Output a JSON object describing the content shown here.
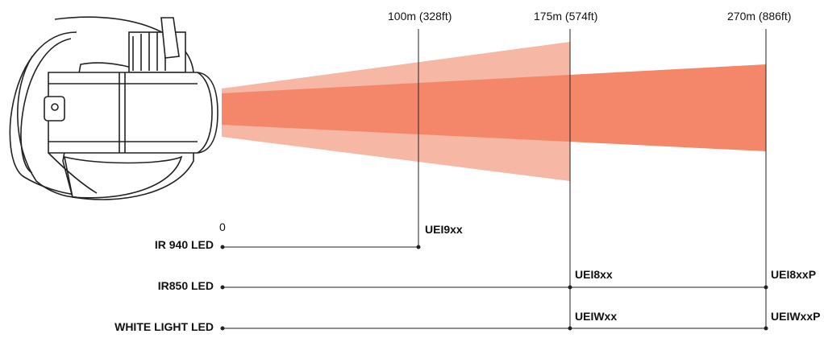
{
  "distances": {
    "d1": "100m (328ft)",
    "d2": "175m (574ft)",
    "d3": "270m (886ft)"
  },
  "origin_label": "0",
  "leds": {
    "ir940": "IR 940 LED",
    "ir850": "IR850 LED",
    "white": "WHITE LIGHT LED"
  },
  "models": {
    "ir940_end": "UEI9xx",
    "ir850_mid": "UEI8xx",
    "ir850_end": "UEI8xxP",
    "white_mid": "UEIWxx",
    "white_end": "UEIWxxP"
  },
  "colors": {
    "beam_light": "#F6B7A4",
    "beam_dark": "#F4876A",
    "line": "#222222"
  }
}
